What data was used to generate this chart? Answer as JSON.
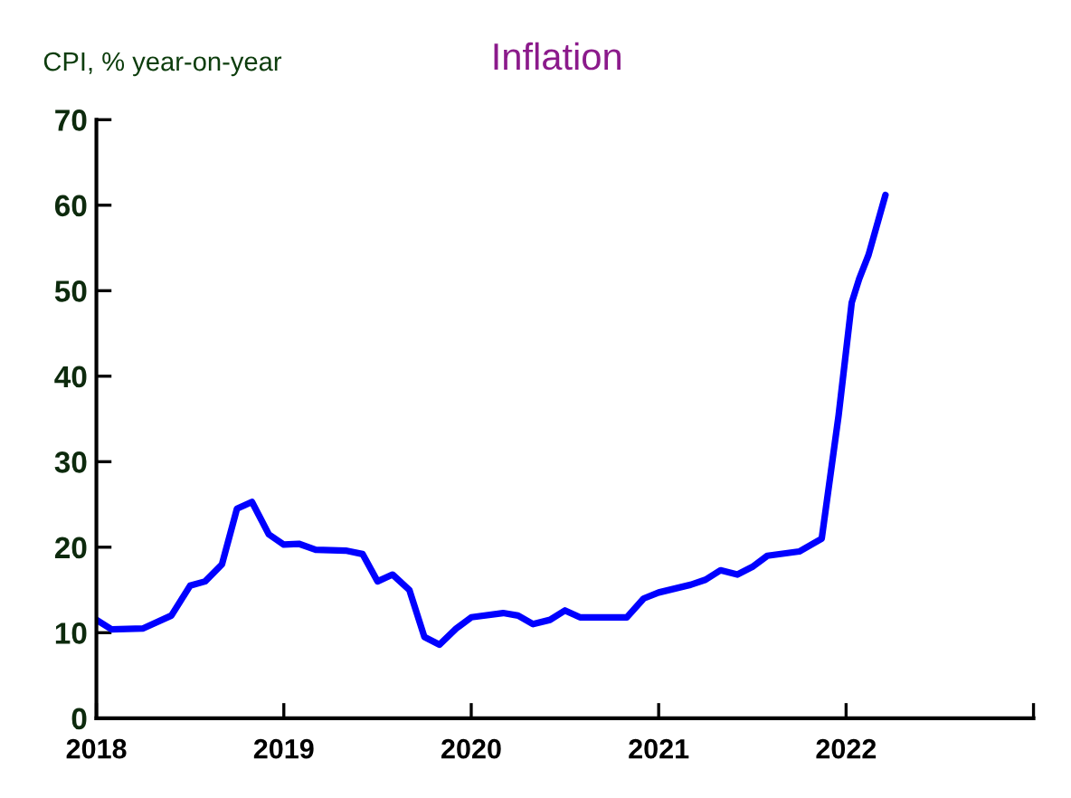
{
  "chart_data": {
    "type": "line",
    "title": "Inflation",
    "ylabel": "CPI, % year-on-year",
    "x": [
      2018.0,
      2018.08,
      2018.25,
      2018.4,
      2018.5,
      2018.58,
      2018.67,
      2018.75,
      2018.83,
      2018.92,
      2019.0,
      2019.08,
      2019.17,
      2019.33,
      2019.42,
      2019.5,
      2019.58,
      2019.67,
      2019.75,
      2019.83,
      2019.92,
      2020.0,
      2020.17,
      2020.25,
      2020.33,
      2020.42,
      2020.5,
      2020.58,
      2020.67,
      2020.83,
      2020.92,
      2021.0,
      2021.17,
      2021.25,
      2021.33,
      2021.42,
      2021.5,
      2021.58,
      2021.75,
      2021.87,
      2021.96,
      2022.03,
      2022.07,
      2022.12,
      2022.21
    ],
    "series": [
      {
        "color": "#0000ff",
        "values": [
          11.5,
          10.4,
          10.5,
          12,
          15.5,
          16,
          18,
          24.5,
          25.3,
          21.5,
          20.3,
          20.4,
          19.7,
          19.6,
          19.2,
          16,
          16.8,
          15,
          9.5,
          8.6,
          10.5,
          11.8,
          12.3,
          12,
          11,
          11.5,
          12.6,
          11.8,
          11.8,
          11.8,
          14,
          14.7,
          15.6,
          16.2,
          17.3,
          16.8,
          17.7,
          19,
          19.5,
          21,
          35.4,
          48.6,
          51.4,
          54.2,
          61.2
        ]
      }
    ],
    "xlim": [
      2018,
      2023
    ],
    "xticks": [
      {
        "value": 2018,
        "label": "2018"
      },
      {
        "value": 2019,
        "label": "2019"
      },
      {
        "value": 2020,
        "label": "2020"
      },
      {
        "value": 2021,
        "label": "2021"
      },
      {
        "value": 2022,
        "label": "2022"
      },
      {
        "value": 2023,
        "label": null
      }
    ],
    "ylim": [
      0,
      70
    ],
    "yticks": [
      0,
      10,
      20,
      30,
      40,
      50,
      60,
      70
    ],
    "grid": false,
    "legend": false,
    "marker": "none",
    "line_style": "solid"
  }
}
